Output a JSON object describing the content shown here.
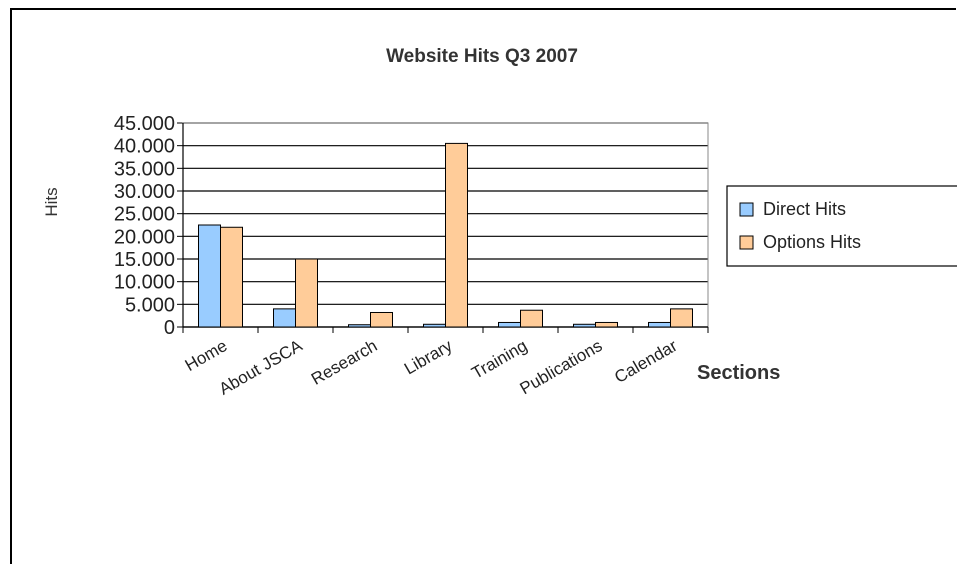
{
  "chart_data": {
    "type": "bar",
    "title": "Website Hits Q3 2007",
    "xlabel": "Sections",
    "ylabel": "Hits",
    "ylim": [
      0,
      45000
    ],
    "yticks": [
      "45.000",
      "40.000",
      "35.000",
      "30.000",
      "25.000",
      "20.000",
      "15.000",
      "10.000",
      "5.000",
      "0"
    ],
    "categories": [
      "Home",
      "About JSCA",
      "Research",
      "Library",
      "Training",
      "Publications",
      "Calendar"
    ],
    "series": [
      {
        "name": "Direct Hits",
        "color": "#99ccff",
        "values": [
          22500,
          4000,
          500,
          600,
          1000,
          600,
          1000
        ]
      },
      {
        "name": "Options Hits",
        "color": "#ffcc99",
        "values": [
          22000,
          15000,
          3200,
          40500,
          3700,
          1000,
          4000
        ]
      }
    ],
    "legend_position": "right",
    "grid": true
  }
}
